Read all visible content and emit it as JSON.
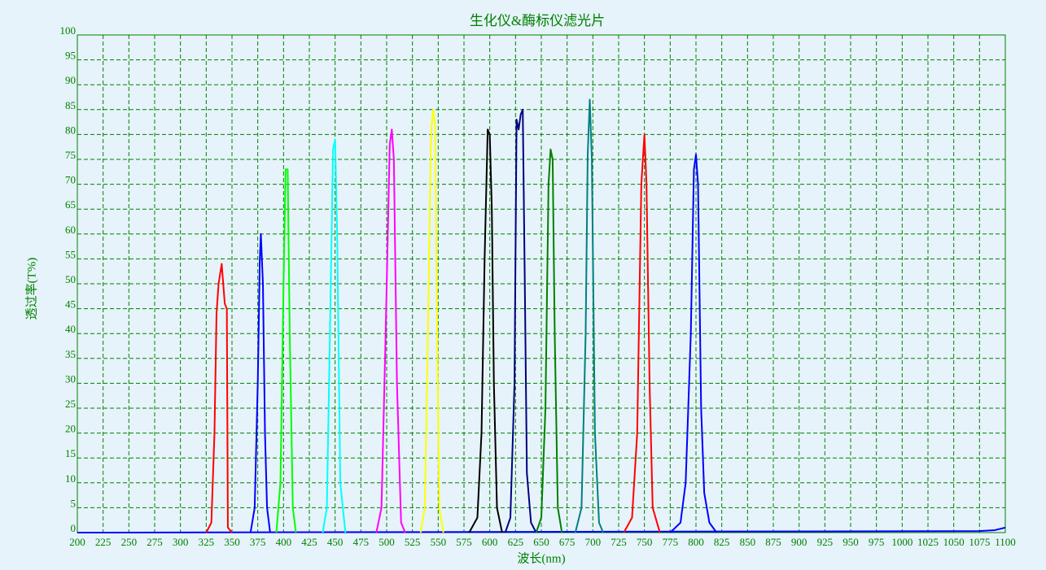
{
  "chart_data": {
    "type": "line",
    "title": "生化仪&酶标仪滤光片",
    "x_label": "波长(nm)",
    "y_label": "透过率(T%)",
    "xlim": [
      200,
      1100
    ],
    "xticks": [
      200,
      225,
      250,
      275,
      300,
      325,
      350,
      375,
      400,
      425,
      450,
      475,
      500,
      525,
      550,
      575,
      600,
      625,
      650,
      675,
      700,
      725,
      750,
      775,
      800,
      825,
      850,
      875,
      900,
      925,
      950,
      975,
      1000,
      1025,
      1050,
      1075,
      1100
    ],
    "ylim": [
      0,
      100
    ],
    "yticks": [
      0,
      5,
      10,
      15,
      20,
      25,
      30,
      35,
      40,
      45,
      50,
      55,
      60,
      65,
      70,
      75,
      80,
      85,
      90,
      95,
      100
    ],
    "grid": true,
    "series": [
      {
        "color": "#0000ff",
        "x": [
          200,
          1075,
          1090,
          1100
        ],
        "values": [
          0,
          0.3,
          0.5,
          1
        ]
      },
      {
        "color": "#ff0000",
        "x": [
          325,
          330,
          333,
          335,
          337,
          340,
          343,
          345,
          346,
          350
        ],
        "values": [
          0,
          2,
          20,
          44,
          50,
          54,
          46,
          45,
          1,
          0
        ]
      },
      {
        "color": "#0000ff",
        "x": [
          368,
          372,
          375,
          377,
          378,
          380,
          382,
          384,
          387
        ],
        "values": [
          0,
          5,
          30,
          55,
          60,
          50,
          20,
          5,
          0
        ]
      },
      {
        "color": "#00ff00",
        "x": [
          393,
          397,
          400,
          402,
          404,
          406,
          409,
          412
        ],
        "values": [
          0,
          10,
          50,
          73,
          73,
          40,
          5,
          0
        ]
      },
      {
        "color": "#00ffff",
        "x": [
          438,
          442,
          445,
          448,
          450,
          452,
          455,
          460
        ],
        "values": [
          0,
          5,
          40,
          77,
          79,
          60,
          10,
          0
        ]
      },
      {
        "color": "#ff00ff",
        "x": [
          490,
          495,
          499,
          503,
          505,
          507,
          510,
          514,
          518
        ],
        "values": [
          0,
          5,
          40,
          78,
          81,
          75,
          30,
          2,
          0
        ]
      },
      {
        "color": "#ffff00",
        "x": [
          533,
          537,
          540,
          543,
          545,
          547,
          549,
          551,
          555
        ],
        "values": [
          0,
          5,
          40,
          80,
          85,
          82,
          40,
          5,
          0
        ]
      },
      {
        "color": "#000000",
        "x": [
          580,
          588,
          592,
          595,
          598,
          600,
          602,
          604,
          607,
          612
        ],
        "values": [
          0,
          3,
          20,
          55,
          81,
          80,
          65,
          30,
          5,
          0
        ]
      },
      {
        "color": "#000080",
        "x": [
          615,
          620,
          624,
          626,
          628,
          630,
          632,
          634,
          636,
          640,
          645
        ],
        "values": [
          0,
          3,
          30,
          83,
          81,
          84,
          85,
          50,
          12,
          2,
          0
        ]
      },
      {
        "color": "#008000",
        "x": [
          645,
          650,
          654,
          657,
          659,
          661,
          663,
          666,
          670
        ],
        "values": [
          0,
          3,
          25,
          70,
          77,
          75,
          40,
          5,
          0
        ]
      },
      {
        "color": "#008080",
        "x": [
          683,
          689,
          693,
          695,
          697,
          699,
          702,
          706,
          710
        ],
        "values": [
          0,
          5,
          40,
          76,
          87,
          75,
          20,
          2,
          0
        ]
      },
      {
        "color": "#ff0000",
        "x": [
          730,
          738,
          743,
          747,
          750,
          752,
          755,
          758,
          765
        ],
        "values": [
          0,
          3,
          20,
          70,
          80,
          70,
          30,
          5,
          0
        ]
      },
      {
        "color": "#0000ff",
        "x": [
          775,
          785,
          790,
          795,
          798,
          800,
          802,
          805,
          808,
          813,
          820
        ],
        "values": [
          0,
          2,
          10,
          40,
          73,
          76,
          70,
          25,
          8,
          2,
          0
        ]
      }
    ]
  }
}
